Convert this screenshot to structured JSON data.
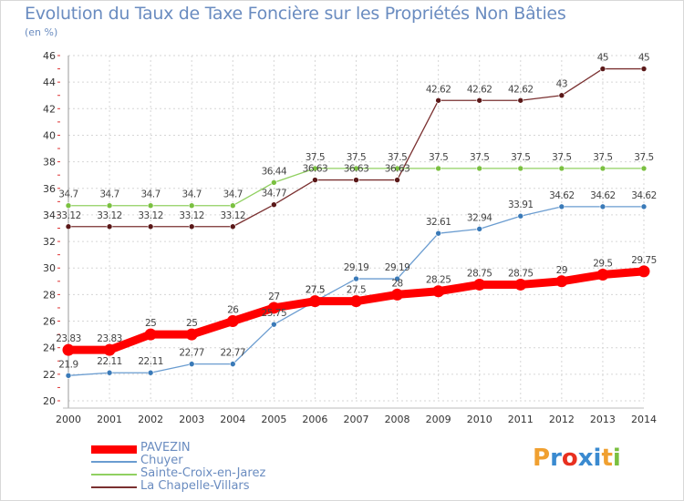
{
  "title": "Evolution du Taux de Taxe Foncière sur les Propriétés Non Bâties",
  "unit_label": "(en %)",
  "logo": {
    "text": "Proxiti",
    "letters": [
      "P",
      "r",
      "o",
      "x",
      "i",
      "t",
      "i"
    ],
    "colors": [
      "#f0a030",
      "#3a8ad0",
      "#e83020",
      "#3a8ad0",
      "#3a8ad0",
      "#f0a030",
      "#7ac040"
    ]
  },
  "chart_data": {
    "type": "line",
    "x": [
      "2000",
      "2001",
      "2002",
      "2003",
      "2004",
      "2005",
      "2006",
      "2007",
      "2008",
      "2009",
      "2010",
      "2011",
      "2012",
      "2013",
      "2014"
    ],
    "ylim": [
      20,
      46
    ],
    "yticks": [
      20,
      22,
      24,
      26,
      28,
      30,
      32,
      34,
      36,
      38,
      40,
      42,
      44,
      46
    ],
    "grid": true,
    "legend_position": "bottom-left",
    "series": [
      {
        "name": "PAVEZIN",
        "color": "#ff0000",
        "style": "thick",
        "values": [
          23.83,
          23.83,
          25,
          25,
          26,
          27,
          27.5,
          27.5,
          28,
          28.25,
          28.75,
          28.75,
          29,
          29.5,
          29.75
        ],
        "labels": [
          "23.83",
          "23.83",
          "25",
          "25",
          "26",
          "27",
          "27.5",
          "27.5",
          "28",
          "28.25",
          "28.75",
          "28.75",
          "29",
          "29.5",
          "29.75"
        ]
      },
      {
        "name": "Chuyer",
        "color": "#6a9cd0",
        "marker": "#3a7ab8",
        "values": [
          21.9,
          22.11,
          22.11,
          22.77,
          22.77,
          25.75,
          27.5,
          29.19,
          29.19,
          32.61,
          32.94,
          33.91,
          34.62,
          34.62,
          34.62
        ],
        "labels": [
          "21.9",
          "22.11",
          "22.11",
          "22.77",
          "22.77",
          "25.75",
          "27.5",
          "29.19",
          "29.19",
          "32.61",
          "32.94",
          "33.91",
          "34.62",
          "34.62",
          "34.62"
        ]
      },
      {
        "name": "Sainte-Croix-en-Jarez",
        "color": "#90d060",
        "marker": "#7ac040",
        "values": [
          34.7,
          34.7,
          34.7,
          34.7,
          34.7,
          36.44,
          37.5,
          37.5,
          37.5,
          37.5,
          37.5,
          37.5,
          37.5,
          37.5,
          37.5
        ],
        "labels": [
          "34.7",
          "34.7",
          "34.7",
          "34.7",
          "34.7",
          "36.44",
          "37.5",
          "37.5",
          "37.5",
          "37.5",
          "37.5",
          "37.5",
          "37.5",
          "37.5",
          "37.5"
        ]
      },
      {
        "name": "La Chapelle-Villars",
        "color": "#7a3030",
        "marker": "#5a1818",
        "values": [
          33.12,
          33.12,
          33.12,
          33.12,
          33.12,
          34.77,
          36.63,
          36.63,
          36.63,
          42.62,
          42.62,
          42.62,
          43,
          45,
          45
        ],
        "labels": [
          "33.12",
          "33.12",
          "33.12",
          "33.12",
          "33.12",
          "34.77",
          "36.63",
          "36.63",
          "36.63",
          "42.62",
          "42.62",
          "42.62",
          "43",
          "45",
          "45"
        ]
      }
    ]
  }
}
